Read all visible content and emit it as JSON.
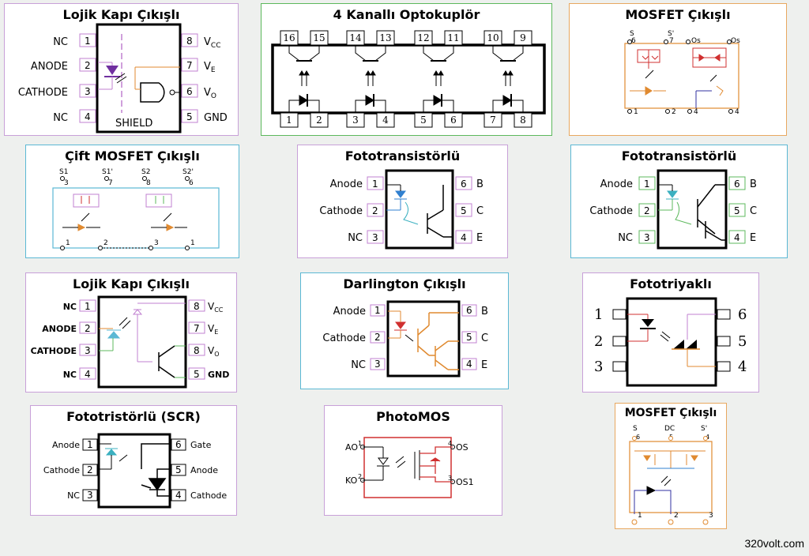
{
  "watermark": "320volt.com",
  "colors": {
    "magenta": "#c080d0",
    "green": "#5cb85c",
    "orange": "#e08a30",
    "cyan": "#5bb8d4",
    "red": "#d03030",
    "purple": "#7030a0",
    "blue": "#3080d0"
  },
  "panels": {
    "logic1": {
      "title": "Lojik Kapı Çıkışlı",
      "left": [
        "NC",
        "ANODE",
        "CATHODE",
        "NC"
      ],
      "left_nums": [
        "1",
        "2",
        "3",
        "4"
      ],
      "right_nums": [
        "8",
        "7",
        "6",
        "5"
      ],
      "shield": "SHIELD"
    },
    "quad": {
      "title": "4 Kanallı Optokuplör",
      "top_pins": [
        "16",
        "15",
        "14",
        "13",
        "12",
        "11",
        "10",
        "9"
      ],
      "bottom_pins": [
        "1",
        "2",
        "3",
        "4",
        "5",
        "6",
        "7",
        "8"
      ]
    },
    "mosfet1": {
      "title": "MOSFET Çıkışlı",
      "top": [
        "S",
        "6",
        "S'",
        "7",
        "Os",
        "Os"
      ],
      "bottom": [
        "1",
        "2",
        "4",
        "4"
      ]
    },
    "dualmos": {
      "title": "Çift MOSFET Çıkışlı",
      "top": [
        "S1",
        "3",
        "S1'",
        "7",
        "S2",
        "8",
        "S2'",
        "6"
      ],
      "bottom": [
        "1",
        "2",
        "3",
        "1"
      ]
    },
    "photo1": {
      "title": "Fototransistörlü",
      "left": [
        "Anode",
        "Cathode",
        "NC"
      ],
      "left_nums": [
        "1",
        "2",
        "3"
      ],
      "right_nums": [
        "6",
        "5",
        "4"
      ],
      "right": [
        "B",
        "C",
        "E"
      ]
    },
    "photo2": {
      "title": "Fototransistörlü",
      "left": [
        "Anode",
        "Cathode",
        "NC"
      ],
      "left_nums": [
        "1",
        "2",
        "3"
      ],
      "right_nums": [
        "6",
        "5",
        "4"
      ],
      "right": [
        "B",
        "C",
        "E"
      ]
    },
    "logic2": {
      "title": "Lojik Kapı Çıkışlı",
      "left": [
        "NC",
        "ANODE",
        "CATHODE",
        "NC"
      ],
      "left_nums": [
        "1",
        "2",
        "3",
        "4"
      ],
      "right_nums": [
        "8",
        "7",
        "8",
        "5"
      ]
    },
    "darl": {
      "title": "Darlington Çıkışlı",
      "left": [
        "Anode",
        "Cathode",
        "NC"
      ],
      "left_nums": [
        "1",
        "2",
        "3"
      ],
      "right_nums": [
        "6",
        "5",
        "4"
      ],
      "right": [
        "B",
        "C",
        "E"
      ]
    },
    "triac": {
      "title": "Fototriyaklı",
      "left_nums": [
        "1",
        "2",
        "3"
      ],
      "right_nums": [
        "6",
        "5",
        "4"
      ]
    },
    "scr": {
      "title": "Fototristörlü (SCR)",
      "left": [
        "Anode",
        "Cathode",
        "NC"
      ],
      "left_nums": [
        "1",
        "2",
        "3"
      ],
      "right_nums": [
        "6",
        "5",
        "4"
      ],
      "right": [
        "Gate",
        "Anode",
        "Cathode"
      ]
    },
    "photomos": {
      "title": "PhotoMOS",
      "left": [
        "AO",
        "KO"
      ],
      "left_nums": [
        "1",
        "2"
      ],
      "right_nums": [
        "4",
        "3"
      ],
      "right": [
        "OS",
        "OS1"
      ]
    },
    "mosfet2": {
      "title": "MOSFET Çıkışlı",
      "top": [
        "S",
        "6",
        "DC",
        "5",
        "S'",
        "4"
      ],
      "bottom": [
        "1",
        "2",
        "3"
      ]
    }
  }
}
